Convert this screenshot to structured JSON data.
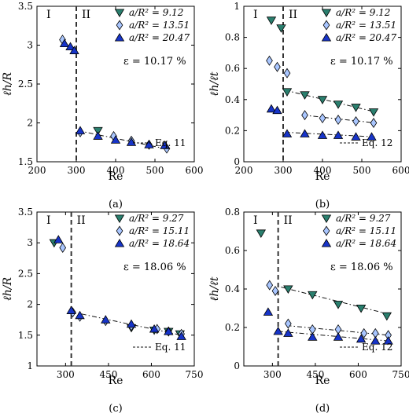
{
  "colors": {
    "dark_green": "#2a7f6e",
    "light_blue": "#a9c6ff",
    "dark_blue": "#1734c8",
    "axis": "#000000"
  },
  "chart_data": [
    {
      "panel": "a",
      "caption": "(a)",
      "type": "scatter",
      "xlabel": "Re",
      "ylabel": "ℓh/R",
      "xlim": [
        200,
        600
      ],
      "ylim": [
        1.5,
        3.5
      ],
      "xticks": [
        "200",
        "300",
        "400",
        "500",
        "600"
      ],
      "yticks": [
        "1.5",
        "2",
        "2.5",
        "3",
        "3.5"
      ],
      "xtick_values": [
        200,
        300,
        400,
        500,
        600
      ],
      "ytick_values": [
        1.5,
        2,
        2.5,
        3,
        3.5
      ],
      "regime_boundary": 300,
      "regimes": [
        "I",
        "II"
      ],
      "epsilon": "ε = 10.17 %",
      "fit_label": "Eq. 11",
      "legend_position": "top-right",
      "fit_x": [
        305,
        535
      ],
      "fit_y": [
        1.9,
        1.66
      ],
      "series": [
        {
          "name": "a/R² = 9.12",
          "marker": "tri-down",
          "x": [
            355
          ],
          "y": [
            1.9
          ]
        },
        {
          "name": "a/R² = 13.51",
          "marker": "diamond",
          "x": [
            265,
            310,
            395,
            440,
            485,
            530
          ],
          "y": [
            3.07,
            1.88,
            1.83,
            1.77,
            1.72,
            1.67
          ]
        },
        {
          "name": "a/R² = 20.47",
          "marker": "tri-up",
          "x": [
            270,
            285,
            295,
            310,
            355,
            400,
            440,
            485,
            525
          ],
          "y": [
            3.02,
            2.98,
            2.93,
            1.9,
            1.83,
            1.78,
            1.75,
            1.72,
            1.71
          ]
        }
      ]
    },
    {
      "panel": "b",
      "caption": "(b)",
      "type": "scatter",
      "xlabel": "Re",
      "ylabel": "ℓh/ℓt",
      "xlim": [
        200,
        600
      ],
      "ylim": [
        0,
        1
      ],
      "xticks": [
        "200",
        "300",
        "400",
        "500",
        "600"
      ],
      "yticks": [
        "0",
        "0.2",
        "0.4",
        "0.6",
        "0.8",
        "1"
      ],
      "xtick_values": [
        200,
        300,
        400,
        500,
        600
      ],
      "ytick_values": [
        0,
        0.2,
        0.4,
        0.6,
        0.8,
        1
      ],
      "regime_boundary": 300,
      "regimes": [
        "I",
        "II"
      ],
      "epsilon": "ε = 10.17 %",
      "fit_label": "Eq. 12",
      "legend_position": "top-right",
      "fits": [
        {
          "x": [
            305,
            535
          ],
          "y": [
            0.46,
            0.32
          ]
        },
        {
          "x": [
            350,
            535
          ],
          "y": [
            0.3,
            0.25
          ]
        },
        {
          "x": [
            305,
            535
          ],
          "y": [
            0.19,
            0.16
          ]
        }
      ],
      "series": [
        {
          "name": "a/R² = 9.12",
          "marker": "tri-down",
          "x": [
            270,
            295,
            310,
            355,
            400,
            440,
            485,
            530
          ],
          "y": [
            0.91,
            0.86,
            0.45,
            0.43,
            0.4,
            0.37,
            0.35,
            0.32
          ]
        },
        {
          "name": "a/R² = 13.51",
          "marker": "diamond",
          "x": [
            265,
            285,
            310,
            355,
            400,
            440,
            485,
            530
          ],
          "y": [
            0.65,
            0.61,
            0.57,
            0.3,
            0.28,
            0.27,
            0.26,
            0.25
          ]
        },
        {
          "name": "a/R² = 20.47",
          "marker": "tri-up",
          "x": [
            270,
            285,
            310,
            355,
            400,
            440,
            485,
            525
          ],
          "y": [
            0.34,
            0.33,
            0.18,
            0.18,
            0.17,
            0.17,
            0.16,
            0.16
          ]
        }
      ]
    },
    {
      "panel": "c",
      "caption": "(c)",
      "type": "scatter",
      "xlabel": "Re",
      "ylabel": "ℓh/R",
      "xlim": [
        200,
        750
      ],
      "ylim": [
        1,
        3.5
      ],
      "xticks": [
        "300",
        "450",
        "600",
        "750"
      ],
      "yticks": [
        "1",
        "1.5",
        "2",
        "2.5",
        "3",
        "3.5"
      ],
      "xtick_values": [
        300,
        450,
        600,
        750
      ],
      "ytick_values": [
        1,
        1.5,
        2,
        2.5,
        3,
        3.5
      ],
      "regime_boundary": 320,
      "regimes": [
        "I",
        "II"
      ],
      "epsilon": "ε = 18.06 %",
      "fit_label": "Eq. 11",
      "legend_position": "top-right",
      "fit_x": [
        320,
        705
      ],
      "fit_y": [
        1.88,
        1.5
      ],
      "series": [
        {
          "name": "a/R² = 9.27",
          "marker": "tri-down",
          "x": [
            260,
            530,
            610,
            660,
            700
          ],
          "y": [
            3.0,
            1.62,
            1.58,
            1.56,
            1.52
          ]
        },
        {
          "name": "a/R² = 15.11",
          "marker": "diamond",
          "x": [
            290,
            325,
            350,
            440,
            530,
            620,
            660,
            705
          ],
          "y": [
            2.92,
            1.87,
            1.8,
            1.73,
            1.65,
            1.6,
            1.56,
            1.52
          ]
        },
        {
          "name": "a/R² = 18.64",
          "marker": "tri-up",
          "x": [
            275,
            320,
            350,
            440,
            530,
            610,
            660,
            705
          ],
          "y": [
            3.05,
            1.9,
            1.82,
            1.75,
            1.68,
            1.6,
            1.56,
            1.48
          ]
        }
      ]
    },
    {
      "panel": "d",
      "caption": "(d)",
      "type": "scatter",
      "xlabel": "Re",
      "ylabel": "ℓh/ℓt",
      "xlim": [
        200,
        750
      ],
      "ylim": [
        0,
        0.8
      ],
      "xticks": [
        "300",
        "450",
        "600",
        "750"
      ],
      "yticks": [
        "0",
        "0.2",
        "0.4",
        "0.6",
        "0.8"
      ],
      "xtick_values": [
        300,
        450,
        600,
        750
      ],
      "ytick_values": [
        0,
        0.2,
        0.4,
        0.6,
        0.8
      ],
      "regime_boundary": 320,
      "regimes": [
        "I",
        "II"
      ],
      "epsilon": "ε = 18.06 %",
      "fit_label": "Eq. 12",
      "legend_position": "top-right",
      "fits": [
        {
          "x": [
            330,
            705
          ],
          "y": [
            0.41,
            0.27
          ]
        },
        {
          "x": [
            350,
            705
          ],
          "y": [
            0.21,
            0.16
          ]
        },
        {
          "x": [
            320,
            705
          ],
          "y": [
            0.18,
            0.13
          ]
        }
      ],
      "series": [
        {
          "name": "a/R² = 9.27",
          "marker": "tri-down",
          "x": [
            260,
            355,
            440,
            530,
            610,
            700
          ],
          "y": [
            0.69,
            0.4,
            0.37,
            0.32,
            0.3,
            0.26
          ]
        },
        {
          "name": "a/R² = 15.11",
          "marker": "diamond",
          "x": [
            290,
            310,
            355,
            440,
            530,
            620,
            660,
            705
          ],
          "y": [
            0.42,
            0.39,
            0.22,
            0.19,
            0.19,
            0.17,
            0.17,
            0.16
          ]
        },
        {
          "name": "a/R² = 18.64",
          "marker": "tri-up",
          "x": [
            285,
            320,
            355,
            440,
            530,
            610,
            660,
            705
          ],
          "y": [
            0.28,
            0.18,
            0.17,
            0.15,
            0.15,
            0.14,
            0.13,
            0.13
          ]
        }
      ]
    }
  ]
}
